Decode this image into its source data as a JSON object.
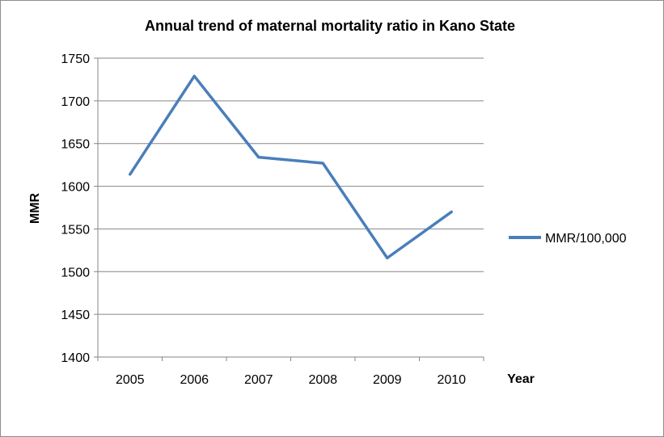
{
  "chart_data": {
    "type": "line",
    "title": "Annual trend of maternal mortality ratio in Kano State",
    "xlabel": "Year",
    "ylabel": "MMR",
    "categories": [
      "2005",
      "2006",
      "2007",
      "2008",
      "2009",
      "2010"
    ],
    "series": [
      {
        "name": "MMR/100,000",
        "values": [
          1614,
          1729,
          1634,
          1627,
          1516,
          1570
        ],
        "color": "#4a7ebb"
      }
    ],
    "ylim": [
      1400,
      1750
    ],
    "yticks": [
      1400,
      1450,
      1500,
      1550,
      1600,
      1650,
      1700,
      1750
    ],
    "grid": true,
    "legend": "right"
  }
}
